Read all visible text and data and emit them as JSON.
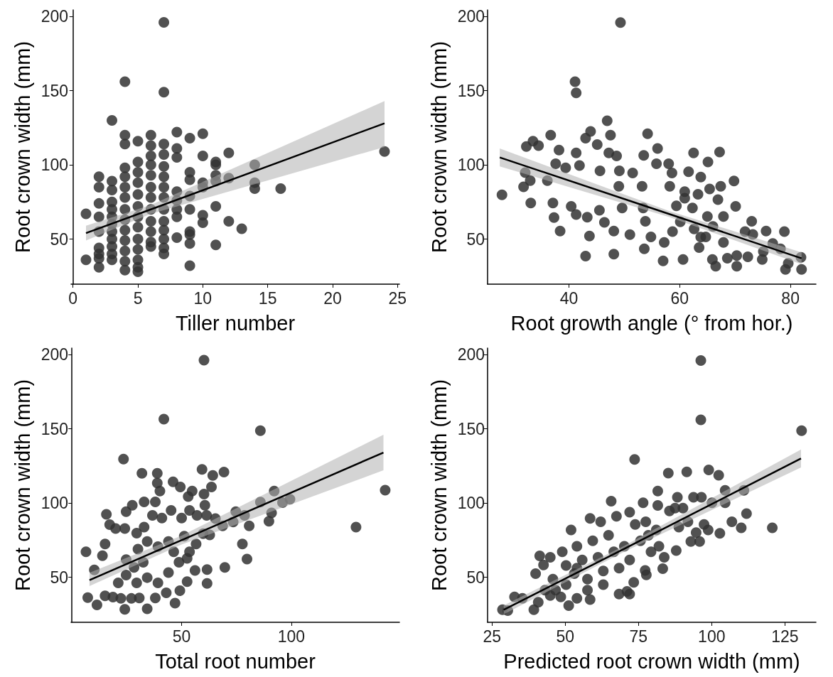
{
  "chart_data": [
    {
      "type": "scatter",
      "xlabel": "Tiller number",
      "ylabel": "Root crown width (mm)",
      "xlim": [
        -0.15,
        25.15
      ],
      "ylim": [
        19.6,
        204.4
      ],
      "xticks": [
        0,
        5,
        10,
        15,
        20,
        25
      ],
      "yticks": [
        50,
        100,
        150,
        200
      ],
      "marker": "circle",
      "series": [
        {
          "color": "#333333",
          "x": [
            1,
            1,
            2,
            2,
            2,
            2,
            2,
            2,
            2,
            2,
            2,
            3,
            3,
            3,
            3,
            3,
            3,
            3,
            3,
            3,
            3,
            3,
            3,
            4,
            4,
            4,
            4,
            4,
            4,
            4,
            4,
            4,
            4,
            4,
            4,
            4,
            4,
            5,
            5,
            5,
            5,
            5,
            5,
            5,
            5,
            5,
            5,
            5,
            5,
            5,
            6,
            6,
            6,
            6,
            6,
            6,
            6,
            6,
            6,
            6,
            6,
            6,
            7,
            7,
            7,
            7,
            7,
            7,
            7,
            7,
            7,
            7,
            7,
            7,
            7,
            7,
            8,
            8,
            8,
            8,
            8,
            8,
            8,
            8,
            9,
            9,
            9,
            9,
            9,
            9,
            9,
            9,
            9,
            10,
            10,
            10,
            10,
            10,
            10,
            11,
            11,
            11,
            11,
            11,
            11,
            12,
            12,
            12,
            13,
            14,
            14,
            14,
            16,
            24
          ],
          "values": [
            67,
            36,
            92,
            85,
            74,
            65,
            55,
            44,
            40,
            37,
            31,
            130,
            89,
            83,
            75,
            70,
            65,
            60,
            55,
            50,
            45,
            40,
            36,
            156,
            120,
            114,
            98,
            92,
            85,
            78,
            70,
            63,
            56,
            49,
            42,
            35,
            29,
            116,
            102,
            95,
            88,
            80,
            72,
            65,
            58,
            50,
            43,
            36,
            31,
            28,
            120,
            113,
            106,
            100,
            93,
            85,
            78,
            70,
            62,
            55,
            48,
            45,
            196,
            149,
            114,
            107,
            99,
            92,
            85,
            78,
            70,
            62,
            56,
            50,
            44,
            40,
            122,
            111,
            105,
            82,
            76,
            70,
            65,
            51,
            118,
            95,
            90,
            79,
            70,
            55,
            53,
            47,
            32,
            121,
            106,
            88,
            85,
            66,
            61,
            102,
            100,
            93,
            89,
            72,
            46,
            108,
            91,
            62,
            57,
            100,
            88,
            84,
            84,
            109
          ]
        },
        {
          "type": "line",
          "marker": "none",
          "color": "#000000",
          "x": [
            1,
            6,
            24
          ],
          "values": [
            54,
            70,
            128
          ],
          "lower": [
            49,
            67,
            112
          ],
          "upper": [
            59,
            73,
            143
          ]
        }
      ]
    },
    {
      "type": "scatter",
      "xlabel": "Root growth angle (° from hor.)",
      "ylabel": "Root crown width (mm)",
      "xlim": [
        25.3,
        84.6
      ],
      "ylim": [
        19.6,
        204.4
      ],
      "xticks": [
        40,
        60,
        80
      ],
      "yticks": [
        50,
        100,
        150,
        200
      ],
      "marker": "circle",
      "series": [
        {
          "color": "#333333",
          "x": [
            27.9,
            49.3,
            41.1,
            41.3,
            46.9,
            43.9,
            36.7,
            54.2,
            47.5,
            43.0,
            32.3,
            33.5,
            34.5,
            38.2,
            41.3,
            45.1,
            47.2,
            48.6,
            56.0,
            62.5,
            67.2,
            53.5,
            37.6,
            32.1,
            33.0,
            31.8,
            33.1,
            36.1,
            37.1,
            37.3,
            38.4,
            39.4,
            40.4,
            41.3,
            43.3,
            43.7,
            43.0,
            48.1,
            48.1,
            41.9,
            45.6,
            45.5,
            46.4,
            49.0,
            49.1,
            49.6,
            51.0,
            51.5,
            53.2,
            53.4,
            53.8,
            53.6,
            54.8,
            55.8,
            57.2,
            57.0,
            58.6,
            58.0,
            58.2,
            59.4,
            60.1,
            60.6,
            61.6,
            60.9,
            62.3,
            62.6,
            63.5,
            63.3,
            63.8,
            65.0,
            65.1,
            65.4,
            64.7,
            65.9,
            66.5,
            66.9,
            67.4,
            67.9,
            68.6,
            69.8,
            70.1,
            70.3,
            70.3,
            71.8,
            73.0,
            72.3,
            73.2,
            74.9,
            75.6,
            75.1,
            76.8,
            78.2,
            78.9,
            79.1,
            79.6,
            82.0,
            81.9,
            60.9,
            58.7,
            63.8,
            67.9,
            66.0
          ],
          "values": [
            79.8,
            195.9,
            156.1,
            148.5,
            129.7,
            122.5,
            120,
            121,
            120,
            118,
            112.4,
            116,
            113,
            110,
            108,
            113.7,
            108,
            106,
            111,
            108,
            108.7,
            106.4,
            100.8,
            94.8,
            89.4,
            85.2,
            74.3,
            89.4,
            74.3,
            64.5,
            55.4,
            98,
            72,
            66.5,
            64.7,
            52,
            38.5,
            39.8,
            55.4,
            99.6,
            96,
            69.4,
            61.3,
            85.5,
            96,
            71,
            53,
            94.5,
            85.5,
            71,
            62,
            43.4,
            51.4,
            100.8,
            47.7,
            35.3,
            94.5,
            100.8,
            85.5,
            72.4,
            61.6,
            36.2,
            95.4,
            77.5,
            71,
            56.8,
            44.3,
            80.2,
            91.8,
            65.2,
            102,
            83.8,
            51.4,
            36.2,
            31.7,
            76.6,
            85.5,
            65.2,
            37.1,
            89.1,
            72,
            31.7,
            38.9,
            55,
            62,
            38,
            53.1,
            36.2,
            55.4,
            41.6,
            47,
            43.4,
            55,
            29.5,
            33.6,
            29.5,
            37.7,
            82,
            55,
            51.3,
            47.7,
            58.5
          ]
        },
        {
          "type": "line",
          "marker": "none",
          "color": "#000000",
          "x": [
            27.5,
            58,
            82
          ],
          "values": [
            105,
            67,
            37
          ],
          "lower": [
            99,
            65,
            33
          ],
          "upper": [
            111,
            69,
            41
          ]
        }
      ]
    },
    {
      "type": "scatter",
      "xlabel": "Total root number",
      "ylabel": "Root crown width (mm)",
      "xlim": [
        -0.4,
        149.3
      ],
      "ylim": [
        19.6,
        204.4
      ],
      "xticks": [
        50,
        100
      ],
      "yticks": [
        50,
        100,
        150,
        200
      ],
      "marker": "circle",
      "series": [
        {
          "color": "#333333",
          "x": [
            60.2,
            41.9,
            85.9,
            23.5,
            31.9,
            38.9,
            59.3,
            69.3,
            64.2,
            38.9,
            40.1,
            46.1,
            49.4,
            54.8,
            63.6,
            60.2,
            53,
            92.2,
            99.4,
            96,
            85.9,
            15.7,
            24.7,
            27.5,
            32.9,
            38,
            17.2,
            19.9,
            24.1,
            29.5,
            32.9,
            36.7,
            41,
            45.2,
            50,
            53.6,
            57,
            60.6,
            61.4,
            65.4,
            68.7,
            74.7,
            78.7,
            91,
            89.8,
            80.8,
            73.5,
            77.7,
            79.8,
            69.7,
            61.6,
            56.1,
            52.5,
            61.6,
            49.2,
            47,
            43,
            38,
            34.3,
            24.1,
            11.4,
            7.2,
            6.4,
            10.2,
            13.9,
            15.1,
            15.1,
            18.7,
            22.3,
            27.1,
            30.7,
            21.1,
            24.7,
            28.3,
            32.5,
            24.7,
            30.1,
            34.3,
            39.2,
            44,
            46.4,
            48.8,
            44,
            39.2,
            34.3,
            29.5,
            51.2,
            53.6,
            56.6,
            52.5,
            59.8,
            62.8,
            129.5,
            142.8
          ],
          "values": [
            196.3,
            156.5,
            148.8,
            129.6,
            120,
            120,
            122.6,
            120.9,
            118.6,
            113.4,
            108.1,
            114.3,
            110.8,
            108.1,
            110.8,
            106,
            104.3,
            108,
            102.6,
            100.3,
            100.6,
            92.4,
            94.2,
            98.5,
            100.8,
            100.8,
            85.4,
            82.8,
            82.8,
            79.7,
            83.7,
            91.6,
            89.8,
            95,
            89.8,
            95,
            91.6,
            98.5,
            91.6,
            89.5,
            84.6,
            94.2,
            91.6,
            93.3,
            87.7,
            84.6,
            87.2,
            72.4,
            62.2,
            56.6,
            55.2,
            54.5,
            47,
            45.8,
            40.9,
            32.5,
            39.5,
            36,
            28.7,
            28.3,
            31.3,
            36.2,
            67.1,
            54.9,
            64.5,
            72.4,
            37.4,
            36.6,
            35.7,
            35.7,
            36,
            46.2,
            51.4,
            56.6,
            60.1,
            61.9,
            68.9,
            74.1,
            70.6,
            74.1,
            67.1,
            60.1,
            53.1,
            46.2,
            49.7,
            46.2,
            77.6,
            67.1,
            72.4,
            62.7,
            79.3,
            78.5,
            83.7,
            108.7
          ]
        },
        {
          "type": "line",
          "marker": "none",
          "color": "#000000",
          "x": [
            8,
            50,
            142
          ],
          "values": [
            48,
            75,
            134
          ],
          "lower": [
            44,
            72,
            122
          ],
          "upper": [
            53,
            78,
            146
          ]
        }
      ]
    },
    {
      "type": "scatter",
      "xlabel": "Predicted root crown width (mm)",
      "ylabel": "Root crown width (mm)",
      "xlim": [
        23.5,
        135.6
      ],
      "ylim": [
        19.6,
        204.4
      ],
      "xticks": [
        25,
        50,
        75,
        100,
        125
      ],
      "yticks": [
        50,
        100,
        150,
        200
      ],
      "marker": "circle",
      "series": [
        {
          "color": "#333333",
          "x": [
            96.3,
            96.3,
            130.7,
            73.7,
            85.2,
            91.5,
            99,
            102.4,
            81.6,
            104.6,
            111,
            93.8,
            96.5,
            100.1,
            104.6,
            65.7,
            76.6,
            81.6,
            87.5,
            90.2,
            111.9,
            106.9,
            110.1,
            120.7,
            102.8,
            95.9,
            92.9,
            87.9,
            52,
            58.5,
            62.1,
            67.5,
            72,
            77.5,
            78.4,
            82,
            83.8,
            83.3,
            77.3,
            77.7,
            73.4,
            72,
            71.1,
            68.4,
            58.5,
            54,
            51.2,
            48.5,
            41.3,
            42.6,
            39.9,
            44.9,
            39.3,
            40.8,
            35.4,
            32.7,
            28.6,
            30.4,
            43.1,
            45.8,
            46.7,
            49,
            50.3,
            53.1,
            54,
            55.8,
            57.6,
            59.4,
            61.2,
            63,
            64.8,
            66.6,
            68.4,
            70.2,
            72,
            73.9,
            75.7,
            79.3,
            81.1,
            85.6,
            88.8,
            91.9,
            94.7,
            97.4,
            98.8,
            88.3,
            54,
            50.3,
            63,
            57.6,
            44.9
          ],
          "values": [
            196,
            156,
            148.7,
            129.3,
            120.1,
            121,
            122.3,
            118.7,
            108,
            108.5,
            108.5,
            103.9,
            103.9,
            100.2,
            100.2,
            101.2,
            100.2,
            98.4,
            96.6,
            96.6,
            92.9,
            87.4,
            83.3,
            83.3,
            79.6,
            74.1,
            74.1,
            68,
            81.8,
            89.6,
            87.4,
            91,
            93.8,
            87.4,
            78.2,
            70.8,
            63.4,
            55.7,
            54.6,
            51.5,
            46.5,
            38.6,
            40.4,
            38.6,
            34.9,
            35.8,
            30.9,
            36.7,
            64.4,
            58.3,
            52.4,
            63.4,
            28.1,
            33.1,
            35.8,
            36.7,
            28.1,
            27.5,
            41.3,
            48.7,
            41.3,
            67.1,
            57.9,
            52.4,
            70.8,
            61.6,
            48.7,
            74.5,
            63.4,
            54.2,
            78.2,
            67.1,
            56.1,
            70.8,
            61.6,
            85.5,
            74.5,
            67.1,
            81.8,
            94.7,
            83.7,
            87.4,
            80,
            85.5,
            81.8,
            103.9,
            56.1,
            45,
            45,
            41.3,
            37.7
          ]
        },
        {
          "type": "line",
          "marker": "none",
          "color": "#000000",
          "x": [
            29,
            70,
            130.5
          ],
          "values": [
            28,
            69,
            130
          ],
          "lower": [
            25,
            67,
            124
          ],
          "upper": [
            31,
            71,
            136
          ]
        }
      ]
    }
  ]
}
